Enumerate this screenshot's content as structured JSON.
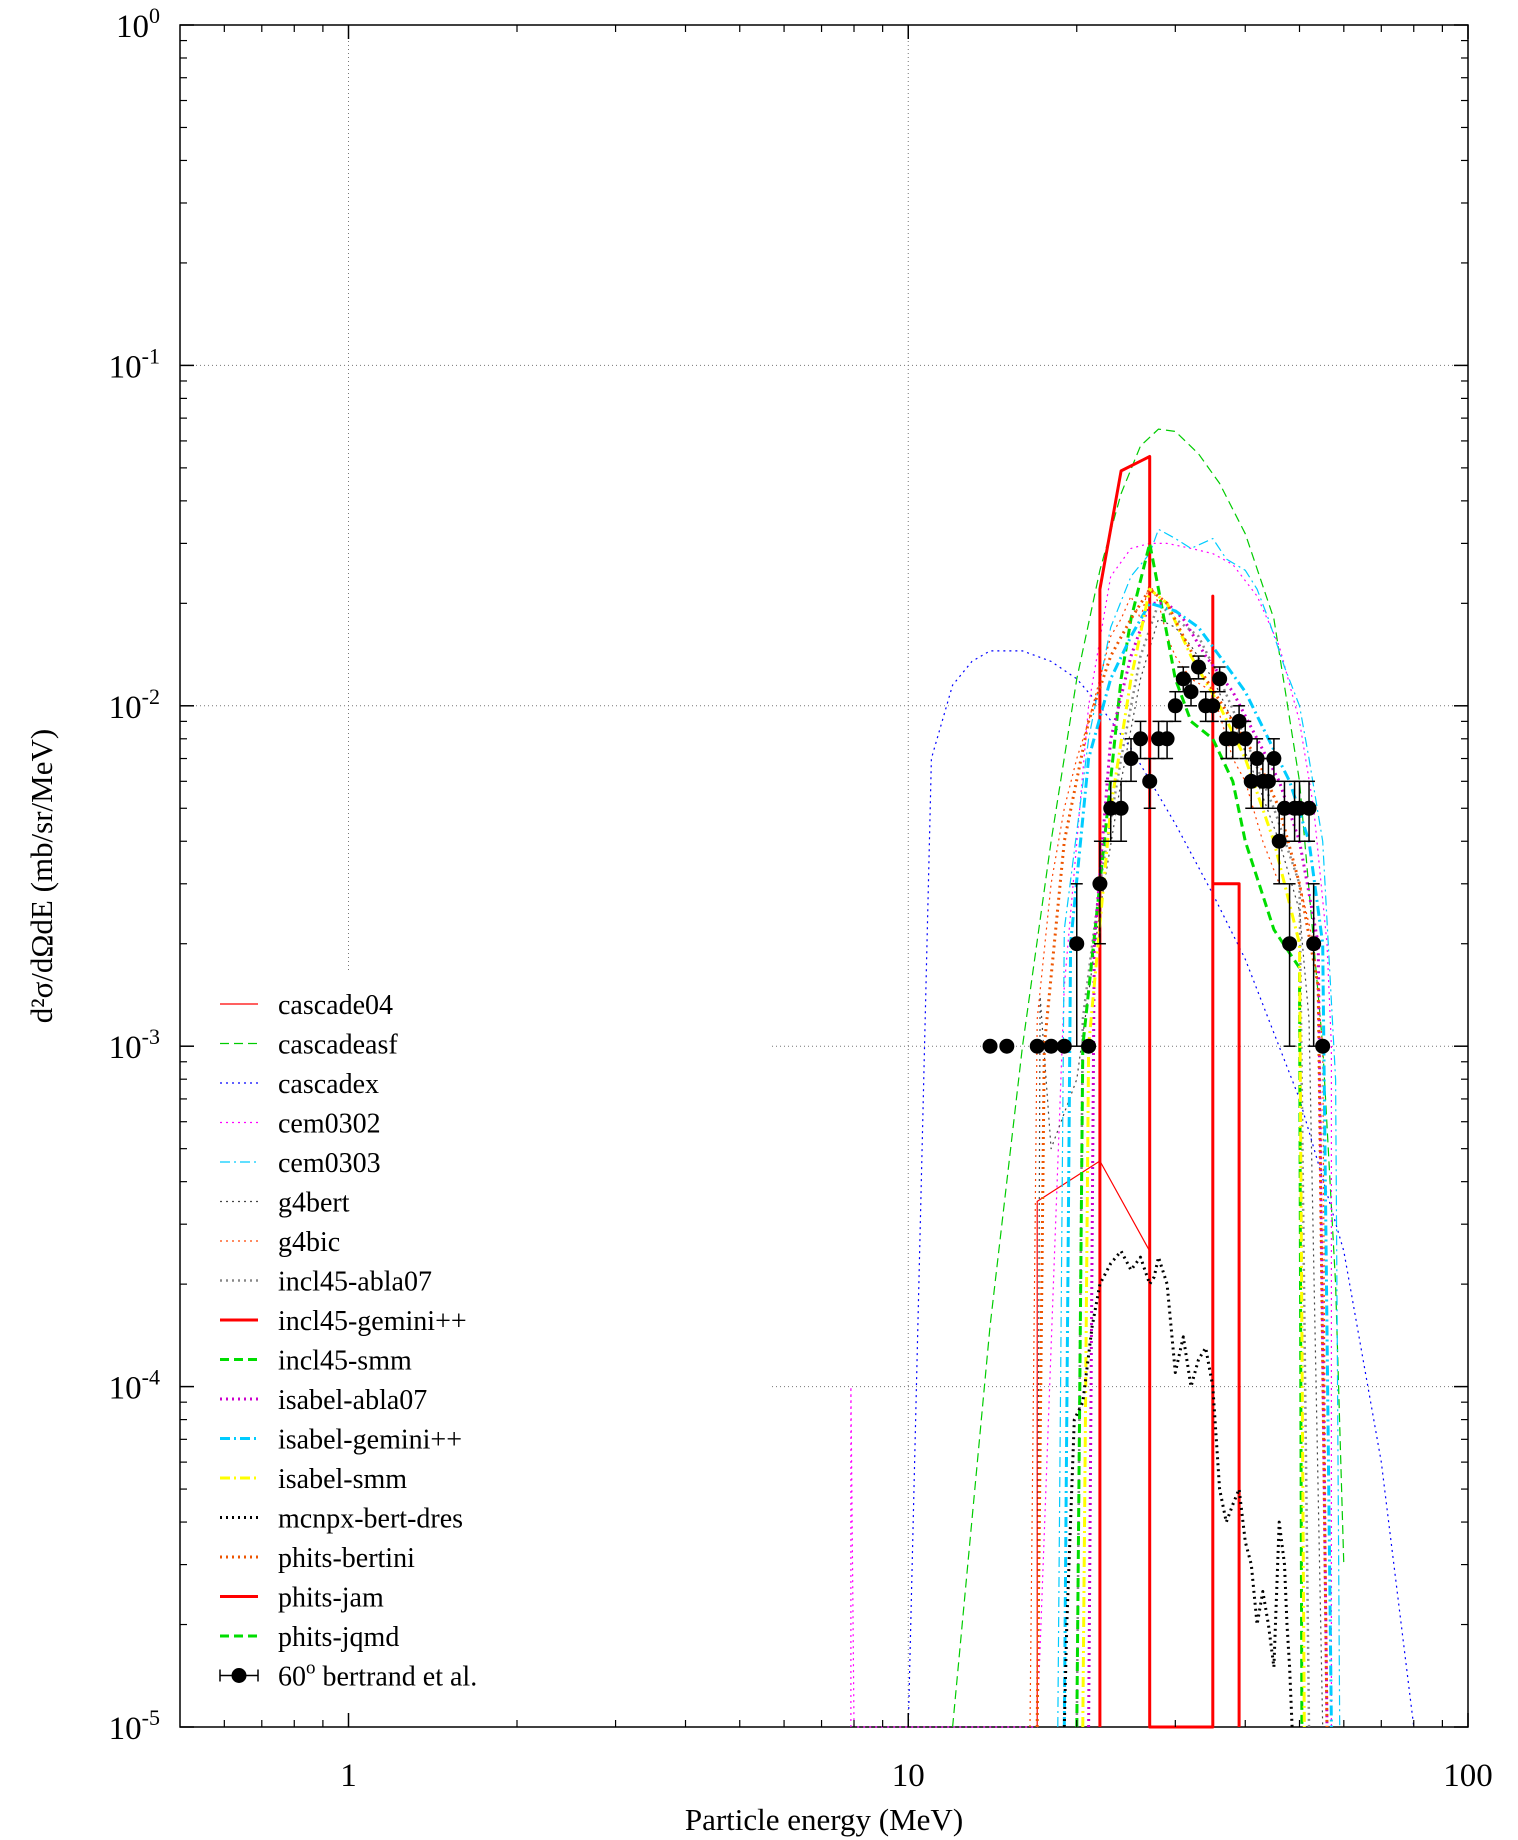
{
  "chart_data": {
    "type": "line",
    "xlabel": "Particle energy (MeV)",
    "ylabel": "d²σ/dΩdE (mb/sr/MeV)",
    "xscale": "log",
    "yscale": "log",
    "xlim": [
      0.5,
      100
    ],
    "ylim": [
      1e-05,
      1
    ],
    "grid": true,
    "legend_position": "bottom-left",
    "x_ticks": [
      {
        "value": 1,
        "label": "1"
      },
      {
        "value": 10,
        "label": "10"
      },
      {
        "value": 100,
        "label": "100"
      }
    ],
    "y_ticks": [
      {
        "value": 1,
        "base": "10",
        "exp": "0"
      },
      {
        "value": 0.1,
        "base": "10",
        "exp": "-1"
      },
      {
        "value": 0.01,
        "base": "10",
        "exp": "-2"
      },
      {
        "value": 0.001,
        "base": "10",
        "exp": "-3"
      },
      {
        "value": 0.0001,
        "base": "10",
        "exp": "-4"
      },
      {
        "value": 1e-05,
        "base": "10",
        "exp": "-5"
      }
    ],
    "series": [
      {
        "name": "cascade04",
        "color": "#ff0000",
        "dash": "solid",
        "width": 1.2,
        "x": [
          17,
          17,
          22,
          27,
          27
        ],
        "y": [
          1e-05,
          0.00035,
          0.00046,
          0.00025,
          1e-05
        ]
      },
      {
        "name": "cascadeasf",
        "color": "#00cc00",
        "dash": "dashed",
        "width": 1.2,
        "x": [
          12,
          14,
          16,
          18,
          20,
          22,
          24,
          26,
          28,
          30,
          33,
          36,
          40,
          45,
          50,
          55,
          58,
          60
        ],
        "y": [
          1e-05,
          0.00015,
          0.001,
          0.004,
          0.012,
          0.025,
          0.042,
          0.058,
          0.065,
          0.064,
          0.055,
          0.045,
          0.032,
          0.018,
          0.006,
          0.001,
          0.0002,
          3e-05
        ]
      },
      {
        "name": "cascadex",
        "color": "#0000ff",
        "dash": "dotted",
        "width": 1.2,
        "x": [
          10,
          11,
          12,
          13,
          14,
          16,
          18,
          20,
          22,
          25,
          30,
          35,
          40,
          50,
          60,
          70,
          80
        ],
        "y": [
          1e-05,
          0.007,
          0.0115,
          0.0135,
          0.0145,
          0.0145,
          0.0135,
          0.012,
          0.01,
          0.0075,
          0.0045,
          0.0028,
          0.0018,
          0.0007,
          0.00025,
          6e-05,
          1e-05
        ]
      },
      {
        "name": "cem0302",
        "color": "#ff00ff",
        "dash": "dotted",
        "width": 1.2,
        "x": [
          7.9,
          7.9,
          8.0,
          17,
          19,
          21,
          23,
          25,
          27,
          29,
          32,
          35,
          38,
          42,
          46,
          50,
          53,
          56,
          57,
          57
        ],
        "y": [
          1e-05,
          0.0001,
          1e-05,
          1e-05,
          0.0015,
          0.01,
          0.024,
          0.029,
          0.03,
          0.03,
          0.029,
          0.028,
          0.026,
          0.021,
          0.015,
          0.009,
          0.005,
          0.002,
          0.001,
          1e-05
        ]
      },
      {
        "name": "cem0303",
        "color": "#00ccff",
        "dash": "dashdot",
        "width": 1.2,
        "x": [
          18.5,
          19,
          21,
          23,
          25,
          27,
          28,
          30,
          32,
          35,
          37,
          40,
          42,
          44,
          47,
          50,
          52,
          55,
          58,
          59
        ],
        "y": [
          1e-05,
          0.0022,
          0.008,
          0.017,
          0.024,
          0.028,
          0.033,
          0.031,
          0.029,
          0.031,
          0.027,
          0.025,
          0.022,
          0.018,
          0.013,
          0.01,
          0.007,
          0.004,
          0.0008,
          1e-05
        ]
      },
      {
        "name": "g4bert",
        "color": "#444444",
        "dash": "dotted",
        "width": 1.2,
        "x": [
          17,
          17.2,
          18,
          20,
          22,
          24,
          26,
          28,
          30,
          32,
          35,
          38,
          42,
          46,
          50,
          52,
          55
        ],
        "y": [
          1e-05,
          0.0014,
          0.0005,
          0.0008,
          0.0025,
          0.006,
          0.012,
          0.018,
          0.017,
          0.015,
          0.012,
          0.009,
          0.006,
          0.004,
          0.0025,
          0.0012,
          1e-05
        ]
      },
      {
        "name": "g4bic",
        "color": "#ff4400",
        "dash": "dotted",
        "width": 1.2,
        "x": [
          16.5,
          17,
          18,
          19,
          20,
          21,
          22,
          23,
          24,
          25,
          26,
          27,
          28,
          29,
          30,
          32,
          35,
          38,
          40,
          43,
          46,
          50,
          53,
          55,
          56
        ],
        "y": [
          1e-05,
          0.0012,
          0.003,
          0.005,
          0.007,
          0.009,
          0.012,
          0.016,
          0.018,
          0.021,
          0.018,
          0.023,
          0.02,
          0.016,
          0.014,
          0.012,
          0.011,
          0.007,
          0.006,
          0.004,
          0.003,
          0.003,
          0.002,
          0.001,
          1e-05
        ]
      },
      {
        "name": "incl45-abla07",
        "color": "#888888",
        "dash": "dotted",
        "width": 2.5,
        "x": [
          20,
          20.5,
          22,
          24,
          26,
          28,
          30,
          33,
          36,
          40,
          45,
          50,
          52
        ],
        "y": [
          1e-05,
          0.0012,
          0.003,
          0.007,
          0.014,
          0.02,
          0.018,
          0.016,
          0.012,
          0.008,
          0.005,
          0.003,
          1e-05
        ]
      },
      {
        "name": "incl45-gemini++",
        "color": "#ff0000",
        "dash": "solid",
        "width": 3,
        "x": [
          22,
          22,
          24,
          27,
          27,
          27,
          35,
          35,
          35,
          39,
          39
        ],
        "y": [
          1e-05,
          0.022,
          0.049,
          0.054,
          1e-05,
          1e-05,
          1e-05,
          0.021,
          0.003,
          0.003,
          1e-05
        ]
      },
      {
        "name": "incl45-smm",
        "color": "#00dd00",
        "dash": "dashed",
        "width": 3,
        "x": [
          20,
          20.5,
          22,
          24,
          25,
          27,
          28,
          30,
          32,
          35,
          38,
          40,
          45,
          50,
          50.5
        ],
        "y": [
          1e-05,
          0.001,
          0.003,
          0.012,
          0.018,
          0.03,
          0.022,
          0.012,
          0.009,
          0.008,
          0.006,
          0.004,
          0.0022,
          0.0017,
          1e-05
        ]
      },
      {
        "name": "isabel-abla07",
        "color": "#cc00cc",
        "dash": "dotted",
        "width": 3,
        "x": [
          21,
          21.5,
          23,
          25,
          27,
          29,
          31,
          34,
          38,
          42,
          46,
          50,
          54,
          56
        ],
        "y": [
          1e-05,
          0.002,
          0.008,
          0.014,
          0.02,
          0.02,
          0.018,
          0.014,
          0.011,
          0.008,
          0.006,
          0.004,
          0.002,
          1e-05
        ]
      },
      {
        "name": "isabel-gemini++",
        "color": "#00ccff",
        "dash": "dashdot",
        "width": 3,
        "x": [
          19,
          19.5,
          21,
          23,
          25,
          27,
          30,
          33,
          36,
          40,
          44,
          48,
          52,
          55,
          57
        ],
        "y": [
          1e-05,
          0.002,
          0.007,
          0.012,
          0.016,
          0.02,
          0.019,
          0.017,
          0.014,
          0.011,
          0.008,
          0.006,
          0.004,
          0.002,
          1e-05
        ]
      },
      {
        "name": "isabel-smm",
        "color": "#ffff00",
        "dash": "dashdot",
        "width": 3,
        "x": [
          20.5,
          21,
          23,
          25,
          27,
          29,
          32,
          36,
          40,
          45,
          50,
          51
        ],
        "y": [
          1e-05,
          0.001,
          0.005,
          0.012,
          0.022,
          0.02,
          0.014,
          0.01,
          0.007,
          0.004,
          0.002,
          1e-05
        ]
      },
      {
        "name": "mcnpx-bert-dres",
        "color": "#000000",
        "dash": "dotted",
        "width": 3,
        "x": [
          19,
          19.2,
          19.8,
          20.5,
          21.3,
          22,
          23,
          24,
          25,
          26,
          27,
          27.5,
          28,
          29,
          30,
          31,
          32,
          33,
          34,
          35,
          36,
          37,
          38,
          39,
          40,
          41,
          42,
          43,
          44,
          45,
          46,
          47,
          47.5,
          48,
          48.5
        ],
        "y": [
          1e-05,
          2e-05,
          8e-05,
          9e-05,
          0.00015,
          0.0002,
          0.00023,
          0.00025,
          0.00022,
          0.00024,
          0.0002,
          0.00021,
          0.00024,
          0.0002,
          0.00011,
          0.00014,
          0.0001,
          0.00012,
          0.00013,
          0.0001,
          5e-05,
          4e-05,
          4.5e-05,
          5e-05,
          3.5e-05,
          3e-05,
          2e-05,
          2.5e-05,
          2e-05,
          1.5e-05,
          4e-05,
          3e-05,
          2e-05,
          1.5e-05,
          1e-05
        ]
      },
      {
        "name": "phits-bertini",
        "color": "#ee5500",
        "dash": "dotted",
        "width": 3,
        "x": [
          17,
          17.5,
          19,
          21,
          23,
          25,
          27,
          29,
          31,
          34,
          38,
          42,
          46,
          50,
          54,
          56
        ],
        "y": [
          1e-05,
          0.001,
          0.004,
          0.009,
          0.014,
          0.018,
          0.022,
          0.02,
          0.016,
          0.012,
          0.009,
          0.007,
          0.005,
          0.003,
          0.0015,
          1e-05
        ]
      },
      {
        "name": "phits-jam",
        "color": "#ff0000",
        "dash": "solid",
        "width": 3,
        "x": [],
        "y": []
      },
      {
        "name": "phits-jqmd",
        "color": "#00dd00",
        "dash": "dashed",
        "width": 3,
        "x": [],
        "y": []
      }
    ],
    "errorbar_series": {
      "name": "bertrand et al.",
      "angle": "60",
      "angle_sup": "o",
      "color": "#000000",
      "points": [
        {
          "x": 14,
          "y": 0.001,
          "err": 0
        },
        {
          "x": 15,
          "y": 0.001,
          "err": 0
        },
        {
          "x": 17,
          "y": 0.001,
          "err": 0
        },
        {
          "x": 18,
          "y": 0.001,
          "err": 0
        },
        {
          "x": 19,
          "y": 0.001,
          "err": 0
        },
        {
          "x": 20,
          "y": 0.002,
          "err": 0.001
        },
        {
          "x": 21,
          "y": 0.001,
          "err": 0
        },
        {
          "x": 22,
          "y": 0.003,
          "err": 0.001
        },
        {
          "x": 23,
          "y": 0.005,
          "err": 0.001
        },
        {
          "x": 24,
          "y": 0.005,
          "err": 0.001
        },
        {
          "x": 25,
          "y": 0.007,
          "err": 0.001
        },
        {
          "x": 26,
          "y": 0.008,
          "err": 0.001
        },
        {
          "x": 27,
          "y": 0.006,
          "err": 0.001
        },
        {
          "x": 28,
          "y": 0.008,
          "err": 0.001
        },
        {
          "x": 29,
          "y": 0.008,
          "err": 0.001
        },
        {
          "x": 30,
          "y": 0.01,
          "err": 0.001
        },
        {
          "x": 31,
          "y": 0.012,
          "err": 0.001
        },
        {
          "x": 32,
          "y": 0.011,
          "err": 0.001
        },
        {
          "x": 33,
          "y": 0.013,
          "err": 0.001
        },
        {
          "x": 34,
          "y": 0.01,
          "err": 0.001
        },
        {
          "x": 35,
          "y": 0.01,
          "err": 0.001
        },
        {
          "x": 36,
          "y": 0.012,
          "err": 0.001
        },
        {
          "x": 37,
          "y": 0.008,
          "err": 0.001
        },
        {
          "x": 38,
          "y": 0.008,
          "err": 0.001
        },
        {
          "x": 39,
          "y": 0.009,
          "err": 0.001
        },
        {
          "x": 40,
          "y": 0.008,
          "err": 0.001
        },
        {
          "x": 41,
          "y": 0.006,
          "err": 0.001
        },
        {
          "x": 42,
          "y": 0.007,
          "err": 0.001
        },
        {
          "x": 43,
          "y": 0.006,
          "err": 0.001
        },
        {
          "x": 44,
          "y": 0.006,
          "err": 0.001
        },
        {
          "x": 45,
          "y": 0.007,
          "err": 0.001
        },
        {
          "x": 46,
          "y": 0.004,
          "err": 0.001
        },
        {
          "x": 47,
          "y": 0.005,
          "err": 0.001
        },
        {
          "x": 48,
          "y": 0.002,
          "err": 0.001
        },
        {
          "x": 49,
          "y": 0.005,
          "err": 0.001
        },
        {
          "x": 50,
          "y": 0.005,
          "err": 0.001
        },
        {
          "x": 52,
          "y": 0.005,
          "err": 0.001
        },
        {
          "x": 53,
          "y": 0.002,
          "err": 0.001
        },
        {
          "x": 55,
          "y": 0.001,
          "err": 0
        }
      ]
    }
  }
}
